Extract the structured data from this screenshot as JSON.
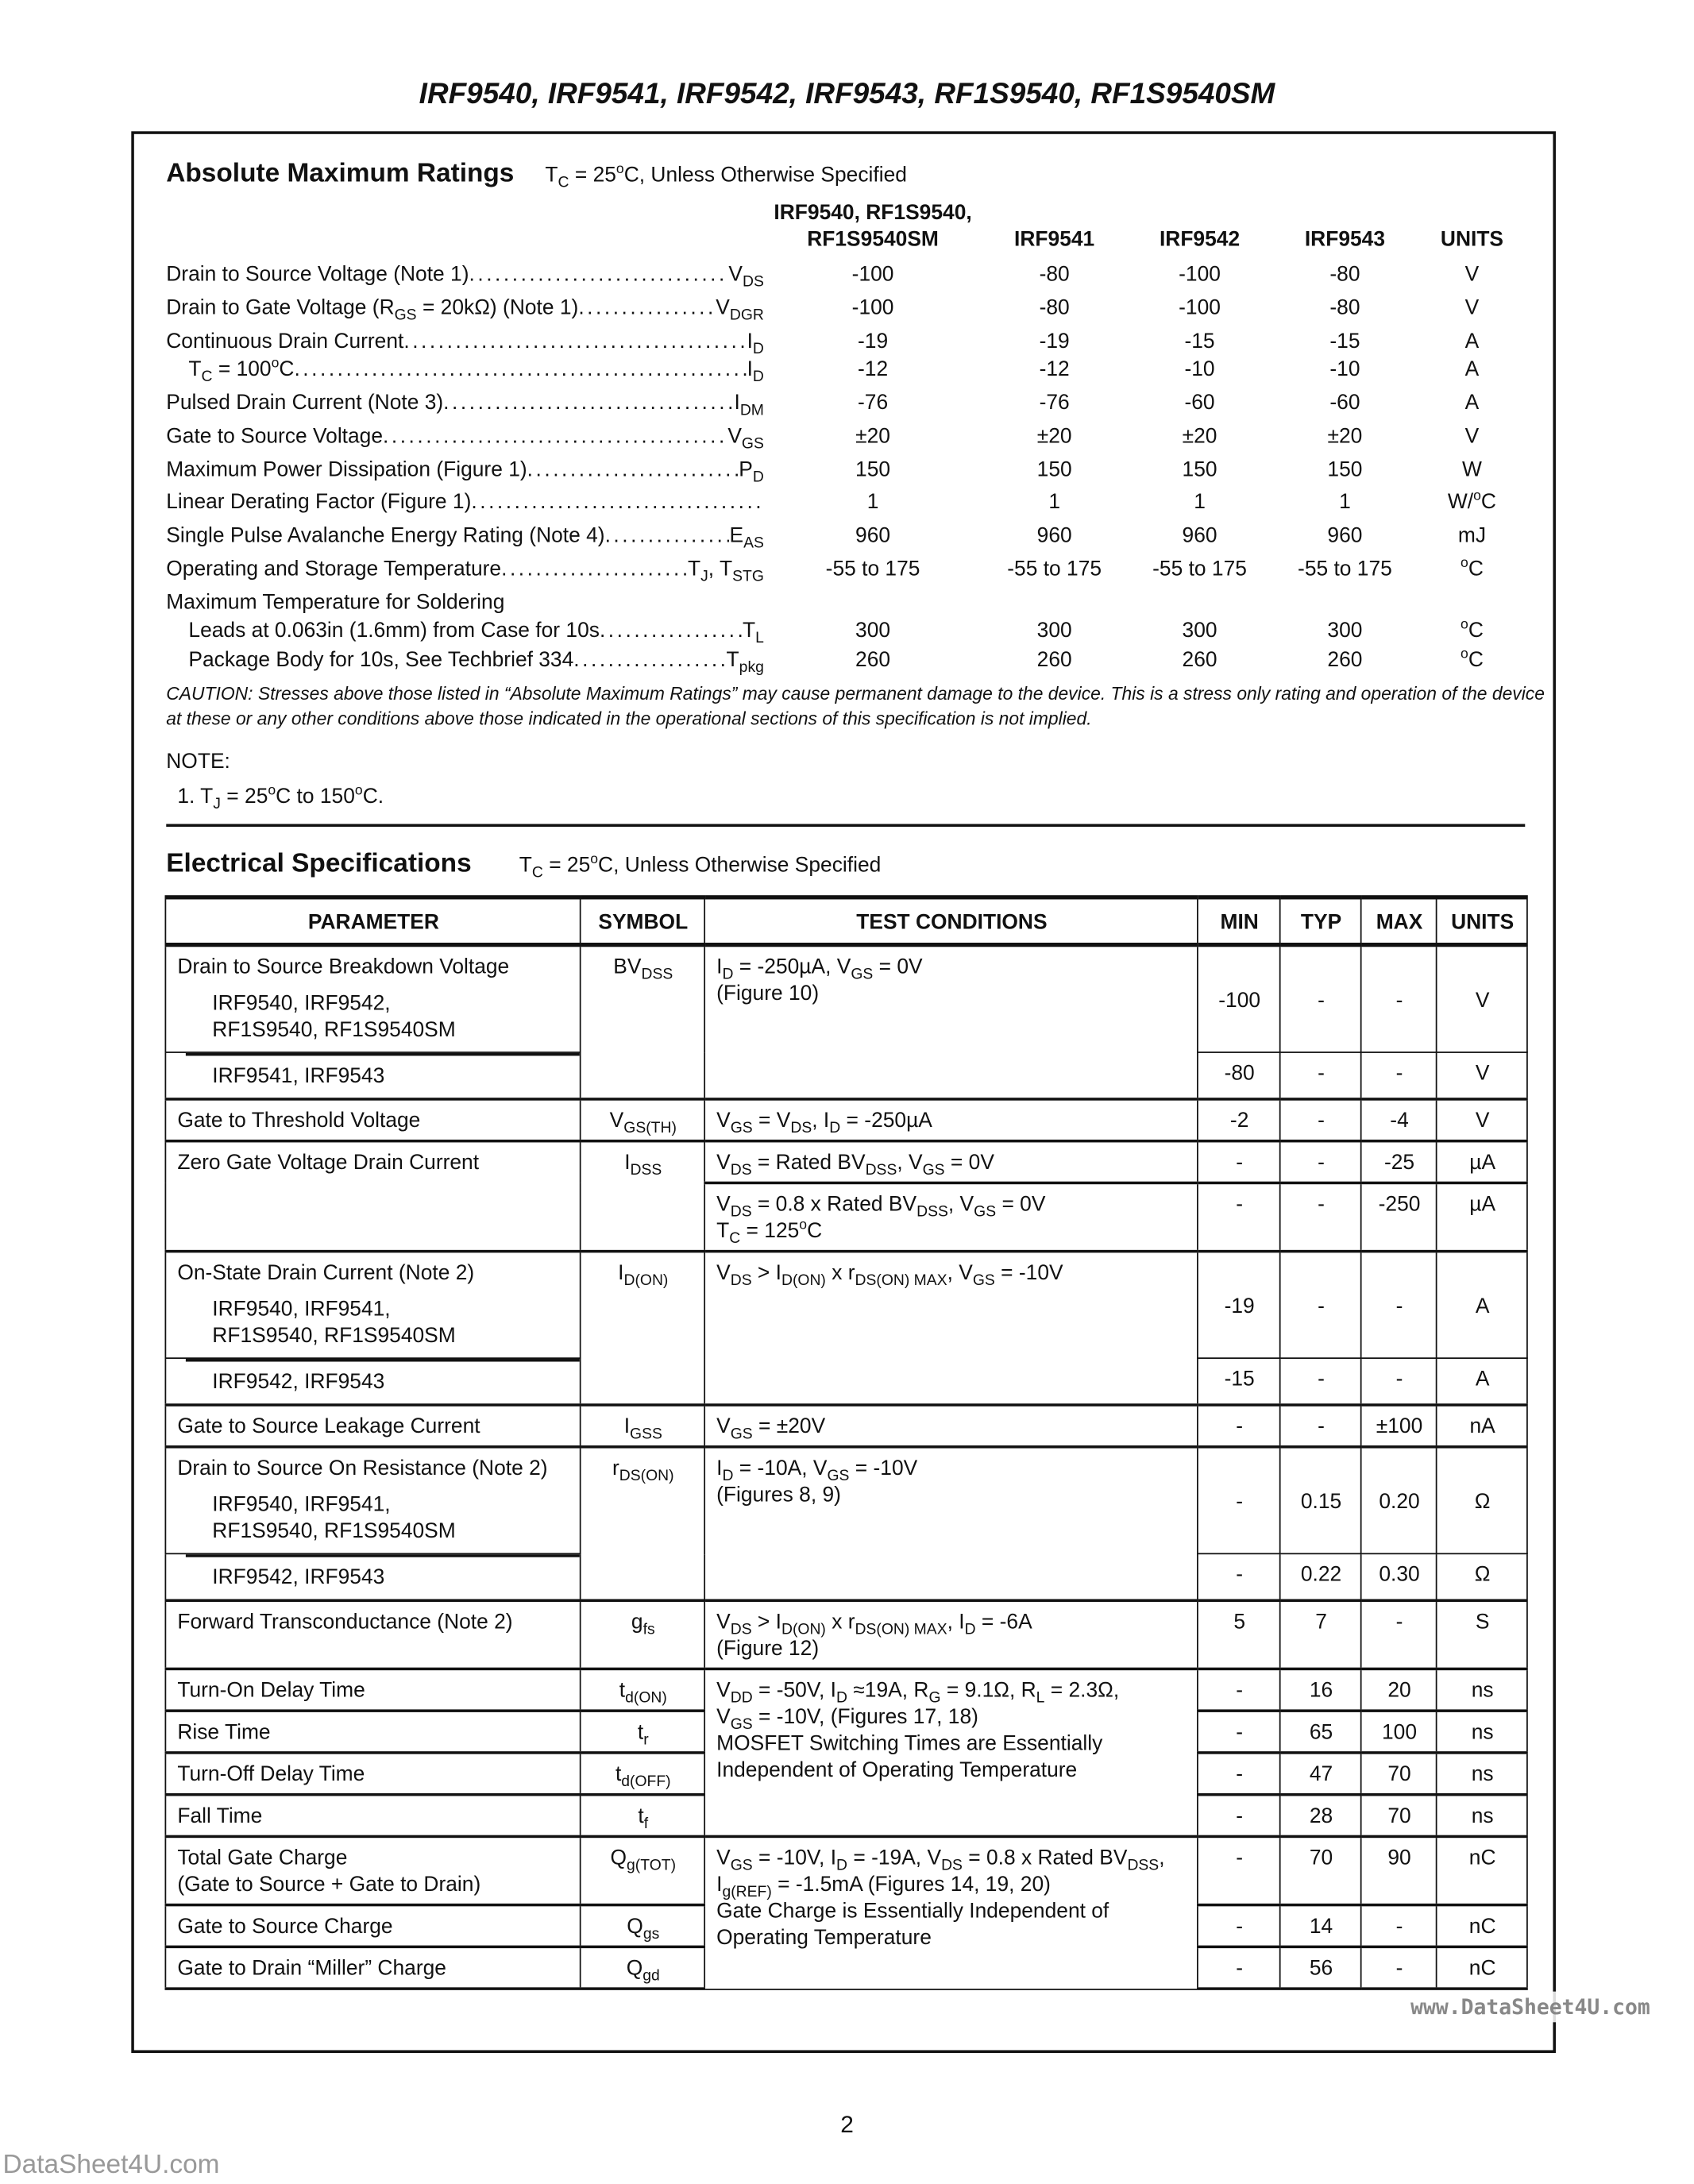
{
  "title": "IRF9540, IRF9541, IRF9542, IRF9543, RF1S9540, RF1S9540SM",
  "abs_max": {
    "heading": "Absolute Maximum Ratings",
    "condition": [
      [
        "T",
        {
          "sub": "C"
        },
        " = 25",
        {
          "sup": "o"
        },
        "C, Unless Otherwise Specified"
      ]
    ],
    "columns": [
      {
        "lines": [
          "IRF9540, RF1S9540,",
          "RF1S9540SM"
        ]
      },
      {
        "lines": [
          "IRF9541"
        ]
      },
      {
        "lines": [
          "IRF9542"
        ]
      },
      {
        "lines": [
          "IRF9543"
        ]
      },
      {
        "lines": [
          "UNITS"
        ]
      }
    ],
    "rows": [
      {
        "label": [
          [
            "Drain to Source Voltage (Note 1)"
          ]
        ],
        "symbol": [
          [
            "V",
            {
              "sub": "DS"
            }
          ]
        ],
        "values": [
          "-100",
          "-80",
          "-100",
          "-80"
        ],
        "units": [
          [
            "V"
          ]
        ]
      },
      {
        "label": [
          [
            "Drain to Gate Voltage (R",
            {
              "sub": "GS"
            },
            " = 20kΩ) (Note 1)"
          ]
        ],
        "symbol": [
          [
            "V",
            {
              "sub": "DGR"
            }
          ]
        ],
        "values": [
          "-100",
          "-80",
          "-100",
          "-80"
        ],
        "units": [
          [
            "V"
          ]
        ]
      },
      {
        "label": [
          [
            "Continuous Drain Current"
          ]
        ],
        "symbol": [
          [
            "I",
            {
              "sub": "D"
            }
          ]
        ],
        "values": [
          "-19",
          "-19",
          "-15",
          "-15"
        ],
        "units": [
          [
            "A"
          ]
        ]
      },
      {
        "indent": true,
        "label": [
          [
            "T",
            {
              "sub": "C"
            },
            " = 100",
            {
              "sup": "o"
            },
            "C"
          ]
        ],
        "symbol": [
          [
            "I",
            {
              "sub": "D"
            }
          ]
        ],
        "values": [
          "-12",
          "-12",
          "-10",
          "-10"
        ],
        "units": [
          [
            "A"
          ]
        ]
      },
      {
        "label": [
          [
            "Pulsed Drain Current (Note 3)"
          ]
        ],
        "symbol": [
          [
            "I",
            {
              "sub": "DM"
            }
          ]
        ],
        "values": [
          "-76",
          "-76",
          "-60",
          "-60"
        ],
        "units": [
          [
            "A"
          ]
        ]
      },
      {
        "label": [
          [
            "Gate to Source Voltage"
          ]
        ],
        "symbol": [
          [
            "V",
            {
              "sub": "GS"
            }
          ]
        ],
        "values": [
          "±20",
          "±20",
          "±20",
          "±20"
        ],
        "units": [
          [
            "V"
          ]
        ]
      },
      {
        "label": [
          [
            "Maximum Power Dissipation (Figure 1)"
          ]
        ],
        "symbol": [
          [
            "P",
            {
              "sub": "D"
            }
          ]
        ],
        "values": [
          "150",
          "150",
          "150",
          "150"
        ],
        "units": [
          [
            "W"
          ]
        ]
      },
      {
        "label": [
          [
            "Linear Derating Factor (Figure 1)"
          ]
        ],
        "symbol": [
          [
            ""
          ]
        ],
        "values": [
          "1",
          "1",
          "1",
          "1"
        ],
        "units": [
          [
            "W/",
            {
              "sup": "o"
            },
            "C"
          ]
        ]
      },
      {
        "label": [
          [
            "Single Pulse Avalanche Energy Rating (Note 4)"
          ]
        ],
        "symbol": [
          [
            "E",
            {
              "sub": "AS"
            }
          ]
        ],
        "values": [
          "960",
          "960",
          "960",
          "960"
        ],
        "units": [
          [
            "mJ"
          ]
        ]
      },
      {
        "label": [
          [
            "Operating and Storage Temperature"
          ]
        ],
        "symbol": [
          [
            "T",
            {
              "sub": "J"
            },
            ", T",
            {
              "sub": "STG"
            }
          ]
        ],
        "values": [
          "-55 to 175",
          "-55 to 175",
          "-55 to 175",
          "-55 to 175"
        ],
        "units": [
          [
            {
              "sup": "o"
            },
            "C"
          ]
        ]
      },
      {
        "heading_only": true,
        "label": [
          [
            "Maximum Temperature for Soldering"
          ]
        ]
      },
      {
        "indent": true,
        "label": [
          [
            "Leads at 0.063in (1.6mm) from Case for 10s"
          ]
        ],
        "symbol": [
          [
            "T",
            {
              "sub": "L"
            }
          ]
        ],
        "values": [
          "300",
          "300",
          "300",
          "300"
        ],
        "units": [
          [
            {
              "sup": "o"
            },
            "C"
          ]
        ]
      },
      {
        "indent": true,
        "label": [
          [
            "Package Body for 10s, See Techbrief 334"
          ]
        ],
        "symbol": [
          [
            "T",
            {
              "sub": "pkg"
            }
          ]
        ],
        "values": [
          "260",
          "260",
          "260",
          "260"
        ],
        "units": [
          [
            {
              "sup": "o"
            },
            "C"
          ]
        ]
      }
    ],
    "caution": "CAUTION: Stresses above those listed in “Absolute Maximum Ratings” may cause permanent damage to the device. This is a stress only rating and operation of the device at these or any other conditions above those indicated in the operational sections of this specification is not implied.",
    "note_heading": "NOTE:",
    "note_1": [
      [
        "1.  T",
        {
          "sub": "J"
        },
        " = 25",
        {
          "sup": "o"
        },
        "C to 150",
        {
          "sup": "o"
        },
        "C."
      ]
    ]
  },
  "electrical": {
    "heading": "Electrical Specifications",
    "condition": [
      [
        "T",
        {
          "sub": "C"
        },
        " = 25",
        {
          "sup": "o"
        },
        "C, Unless Otherwise Specified"
      ]
    ],
    "headers": [
      "PARAMETER",
      "SYMBOL",
      "TEST CONDITIONS",
      "MIN",
      "TYP",
      "MAX",
      "UNITS"
    ],
    "groups": [
      {
        "kind": "variants",
        "parameter": "Drain to Source Breakdown Voltage",
        "symbol": [
          [
            "BV",
            {
              "sub": "DSS"
            }
          ]
        ],
        "conditions": [
          [
            "I",
            {
              "sub": "D"
            },
            " = -250µA, V",
            {
              "sub": "GS"
            },
            " = 0V"
          ],
          [
            "(Figure 10)"
          ]
        ],
        "rows": [
          {
            "label": [
              "IRF9540, IRF9542,",
              "RF1S9540, RF1S9540SM"
            ],
            "min": "-100",
            "typ": "-",
            "max": "-",
            "units": "V"
          },
          {
            "label": [
              "IRF9541, IRF9543"
            ],
            "min": "-80",
            "typ": "-",
            "max": "-",
            "units": "V"
          }
        ]
      },
      {
        "kind": "simple",
        "parameter": "Gate to Threshold Voltage",
        "symbol": [
          [
            "V",
            {
              "sub": "GS(TH)"
            }
          ]
        ],
        "conditions": [
          [
            "V",
            {
              "sub": "GS"
            },
            " = V",
            {
              "sub": "DS"
            },
            ", I",
            {
              "sub": "D"
            },
            " = -250µA"
          ]
        ],
        "rows": [
          {
            "min": "-2",
            "typ": "-",
            "max": "-4",
            "units": "V"
          }
        ]
      },
      {
        "kind": "multicond",
        "parameter": "Zero Gate Voltage Drain Current",
        "symbol": [
          [
            "I",
            {
              "sub": "DSS"
            }
          ]
        ],
        "rows": [
          {
            "conditions": [
              [
                "V",
                {
                  "sub": "DS"
                },
                " = Rated BV",
                {
                  "sub": "DSS"
                },
                ", V",
                {
                  "sub": "GS"
                },
                " = 0V"
              ]
            ],
            "min": "-",
            "typ": "-",
            "max": "-25",
            "units": "µA"
          },
          {
            "conditions": [
              [
                "V",
                {
                  "sub": "DS"
                },
                " = 0.8 x Rated BV",
                {
                  "sub": "DSS"
                },
                ", V",
                {
                  "sub": "GS"
                },
                " = 0V"
              ],
              [
                "T",
                {
                  "sub": "C"
                },
                " = 125",
                {
                  "sup": "o"
                },
                "C"
              ]
            ],
            "min": "-",
            "typ": "-",
            "max": "-250",
            "units": "µA"
          }
        ]
      },
      {
        "kind": "variants",
        "parameter": "On-State Drain Current (Note 2)",
        "symbol": [
          [
            "I",
            {
              "sub": "D(ON)"
            }
          ]
        ],
        "conditions": [
          [
            "V",
            {
              "sub": "DS"
            },
            " > I",
            {
              "sub": "D(ON)"
            },
            " x r",
            {
              "sub": "DS(ON) MAX"
            },
            ", V",
            {
              "sub": "GS"
            },
            " = -10V"
          ]
        ],
        "rows": [
          {
            "label": [
              "IRF9540, IRF9541,",
              "RF1S9540, RF1S9540SM"
            ],
            "min": "-19",
            "typ": "-",
            "max": "-",
            "units": "A"
          },
          {
            "label": [
              "IRF9542, IRF9543"
            ],
            "min": "-15",
            "typ": "-",
            "max": "-",
            "units": "A"
          }
        ]
      },
      {
        "kind": "simple",
        "parameter": "Gate to Source Leakage Current",
        "symbol": [
          [
            "I",
            {
              "sub": "GSS"
            }
          ]
        ],
        "conditions": [
          [
            "V",
            {
              "sub": "GS"
            },
            " = ±20V"
          ]
        ],
        "rows": [
          {
            "min": "-",
            "typ": "-",
            "max": "±100",
            "units": "nA"
          }
        ]
      },
      {
        "kind": "variants",
        "parameter": "Drain to Source On Resistance (Note 2)",
        "symbol": [
          [
            "r",
            {
              "sub": "DS(ON)"
            }
          ]
        ],
        "conditions": [
          [
            "I",
            {
              "sub": "D"
            },
            " = -10A, V",
            {
              "sub": "GS"
            },
            " = -10V"
          ],
          [
            "(Figures 8, 9)"
          ]
        ],
        "rows": [
          {
            "label": [
              "IRF9540, IRF9541,",
              "RF1S9540, RF1S9540SM"
            ],
            "min": "-",
            "typ": "0.15",
            "max": "0.20",
            "units": "Ω"
          },
          {
            "label": [
              "IRF9542, IRF9543"
            ],
            "min": "-",
            "typ": "0.22",
            "max": "0.30",
            "units": "Ω"
          }
        ]
      },
      {
        "kind": "simple",
        "parameter": "Forward Transconductance (Note 2)",
        "symbol": [
          [
            "g",
            {
              "sub": "fs"
            }
          ]
        ],
        "conditions": [
          [
            "V",
            {
              "sub": "DS"
            },
            " > I",
            {
              "sub": "D(ON)"
            },
            " x r",
            {
              "sub": "DS(ON) MAX"
            },
            ", I",
            {
              "sub": "D"
            },
            " = -6A"
          ],
          [
            "(Figure 12)"
          ]
        ],
        "rows": [
          {
            "min": "5",
            "typ": "7",
            "max": "-",
            "units": "S"
          }
        ]
      },
      {
        "kind": "block",
        "conditions": [
          [
            "V",
            {
              "sub": "DD"
            },
            " = -50V, I",
            {
              "sub": "D"
            },
            " ≈19A, R",
            {
              "sub": "G"
            },
            " = 9.1Ω, R",
            {
              "sub": "L"
            },
            " = 2.3Ω,"
          ],
          [
            "V",
            {
              "sub": "GS"
            },
            " = -10V, (Figures 17, 18)"
          ],
          [
            "MOSFET Switching Times are Essentially"
          ],
          [
            "Independent of Operating Temperature"
          ]
        ],
        "rows": [
          {
            "parameter": [
              "Turn-On Delay Time"
            ],
            "symbol": [
              [
                "t",
                {
                  "sub": "d(ON)"
                }
              ]
            ],
            "min": "-",
            "typ": "16",
            "max": "20",
            "units": "ns"
          },
          {
            "parameter": [
              "Rise Time"
            ],
            "symbol": [
              [
                "t",
                {
                  "sub": "r"
                }
              ]
            ],
            "min": "-",
            "typ": "65",
            "max": "100",
            "units": "ns"
          },
          {
            "parameter": [
              "Turn-Off Delay Time"
            ],
            "symbol": [
              [
                "t",
                {
                  "sub": "d(OFF)"
                }
              ]
            ],
            "min": "-",
            "typ": "47",
            "max": "70",
            "units": "ns"
          },
          {
            "parameter": [
              "Fall Time"
            ],
            "symbol": [
              [
                "t",
                {
                  "sub": "f"
                }
              ]
            ],
            "min": "-",
            "typ": "28",
            "max": "70",
            "units": "ns"
          }
        ]
      },
      {
        "kind": "block",
        "conditions": [
          [
            "V",
            {
              "sub": "GS"
            },
            " = -10V, I",
            {
              "sub": "D"
            },
            " = -19A, V",
            {
              "sub": "DS"
            },
            " = 0.8 x Rated BV",
            {
              "sub": "DSS"
            },
            ","
          ],
          [
            "I",
            {
              "sub": "g(REF)"
            },
            " = -1.5mA (Figures 14, 19, 20)"
          ],
          [
            "Gate Charge is Essentially Independent of"
          ],
          [
            "Operating Temperature"
          ]
        ],
        "rows": [
          {
            "parameter": [
              "Total Gate Charge",
              "(Gate to Source + Gate to Drain)"
            ],
            "symbol": [
              [
                "Q",
                {
                  "sub": "g(TOT)"
                }
              ]
            ],
            "min": "-",
            "typ": "70",
            "max": "90",
            "units": "nC"
          },
          {
            "parameter": [
              "Gate to Source Charge"
            ],
            "symbol": [
              [
                "Q",
                {
                  "sub": "gs"
                }
              ]
            ],
            "min": "-",
            "typ": "14",
            "max": "-",
            "units": "nC"
          },
          {
            "parameter": [
              "Gate to Drain “Miller” Charge"
            ],
            "symbol": [
              [
                "Q",
                {
                  "sub": "gd"
                }
              ]
            ],
            "min": "-",
            "typ": "56",
            "max": "-",
            "units": "nC"
          }
        ]
      }
    ]
  },
  "page_number": "2",
  "watermarks": {
    "right": "www.DataSheet4U.com",
    "bottom_left": "DataSheet4U.com"
  }
}
